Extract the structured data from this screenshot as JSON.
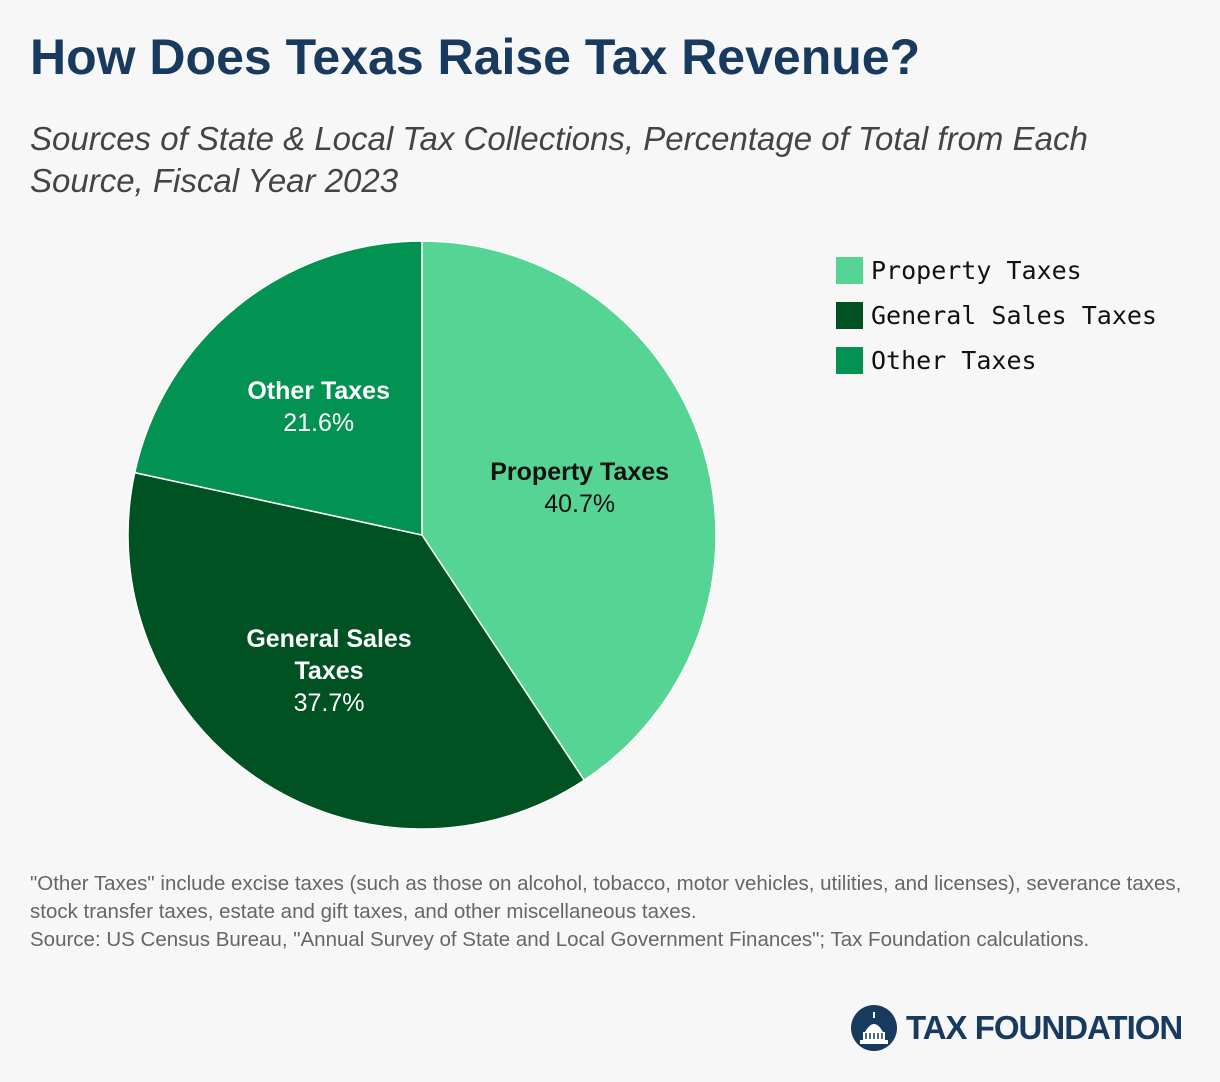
{
  "chart_data": {
    "type": "pie",
    "title": "How Does Texas Raise Tax Revenue?",
    "subtitle": "Sources of State & Local Tax Collections, Percentage of Total from Each Source, Fiscal Year 2023",
    "categories": [
      "Property Taxes",
      "General Sales Taxes",
      "Other Taxes"
    ],
    "values": [
      40.7,
      37.7,
      21.6
    ],
    "value_labels": [
      "40.7%",
      "37.7%",
      "21.6%"
    ],
    "colors": [
      "#55d493",
      "#005222",
      "#029352"
    ],
    "legend": "right",
    "note": "\"Other Taxes\" include excise taxes (such as those on alcohol, tobacco, motor vehicles, utilities, and licenses), severance taxes, stock transfer taxes, estate and gift taxes, and other miscellaneous taxes.",
    "source": "Source: US Census Bureau, \"Annual Survey of State and Local Government Finances\"; Tax Foundation calculations."
  },
  "logo": "TAX FOUNDATION"
}
